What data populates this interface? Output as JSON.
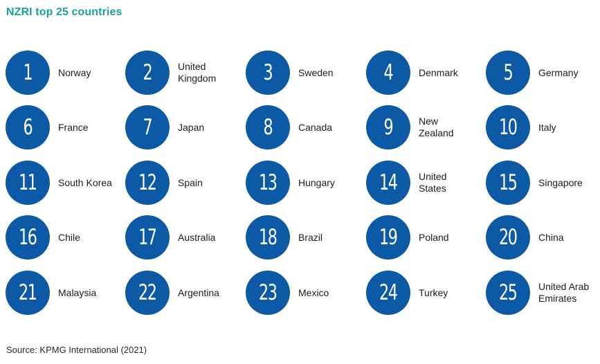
{
  "title": "NZRI top 25 countries",
  "source": "Source: KPMG International (2021)",
  "colors": {
    "title": "#1aa39a",
    "badge": "#0c5aa6",
    "text": "#1c1c1c"
  },
  "ranking": [
    {
      "rank": "1",
      "country": "Norway"
    },
    {
      "rank": "2",
      "country": "United\nKingdom"
    },
    {
      "rank": "3",
      "country": "Sweden"
    },
    {
      "rank": "4",
      "country": "Denmark"
    },
    {
      "rank": "5",
      "country": "Germany"
    },
    {
      "rank": "6",
      "country": "France"
    },
    {
      "rank": "7",
      "country": "Japan"
    },
    {
      "rank": "8",
      "country": "Canada"
    },
    {
      "rank": "9",
      "country": "New\nZealand"
    },
    {
      "rank": "10",
      "country": "Italy"
    },
    {
      "rank": "11",
      "country": "South Korea"
    },
    {
      "rank": "12",
      "country": "Spain"
    },
    {
      "rank": "13",
      "country": "Hungary"
    },
    {
      "rank": "14",
      "country": "United\nStates"
    },
    {
      "rank": "15",
      "country": "Singapore"
    },
    {
      "rank": "16",
      "country": "Chile"
    },
    {
      "rank": "17",
      "country": "Australia"
    },
    {
      "rank": "18",
      "country": "Brazil"
    },
    {
      "rank": "19",
      "country": "Poland"
    },
    {
      "rank": "20",
      "country": "China"
    },
    {
      "rank": "21",
      "country": "Malaysia"
    },
    {
      "rank": "22",
      "country": "Argentina"
    },
    {
      "rank": "23",
      "country": "Mexico"
    },
    {
      "rank": "24",
      "country": "Turkey"
    },
    {
      "rank": "25",
      "country": "United Arab\nEmirates"
    }
  ]
}
